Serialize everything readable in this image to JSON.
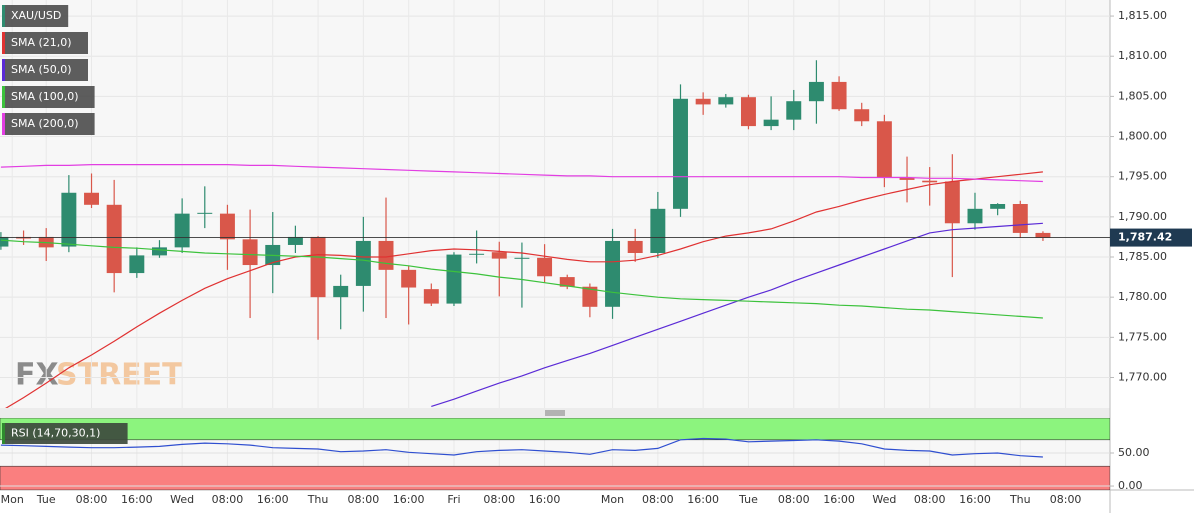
{
  "watermark": [
    "FX",
    "STREET"
  ],
  "chart_data": [
    {
      "type": "candlestick",
      "name": "XAU/USD",
      "up_color": "#2e8b6f",
      "down_color": "#d9574a",
      "legend_color": "#2e8b6f",
      "open": [
        1786.3,
        1787.5,
        1787.5,
        1786.3,
        1793.0,
        1791.5,
        1783.0,
        1785.2,
        1786.2,
        1790.4,
        1790.4,
        1787.2,
        1784.0,
        1786.5,
        1787.5,
        1780.0,
        1781.4,
        1787.0,
        1783.4,
        1781.0,
        1779.2,
        1785.3,
        1785.6,
        1784.8,
        1784.9,
        1782.5,
        1781.3,
        1778.8,
        1787.0,
        1785.5,
        1791.0,
        1804.7,
        1804.0,
        1804.9,
        1801.3,
        1802.1,
        1804.4,
        1806.8,
        1803.4,
        1801.9,
        1794.9,
        1794.5,
        1794.4,
        1789.2,
        1791.0,
        1791.6,
        1788.0
      ],
      "high": [
        1788.1,
        1788.3,
        1788.6,
        1795.2,
        1795.4,
        1794.6,
        1786.2,
        1787.1,
        1792.3,
        1793.8,
        1791.5,
        1790.9,
        1790.6,
        1788.9,
        1787.6,
        1782.8,
        1790.0,
        1792.4,
        1783.9,
        1781.7,
        1785.6,
        1788.3,
        1786.9,
        1786.8,
        1786.6,
        1782.8,
        1781.7,
        1788.5,
        1788.5,
        1793.1,
        1806.5,
        1805.5,
        1805.3,
        1805.2,
        1805.0,
        1805.8,
        1809.5,
        1807.5,
        1804.2,
        1802.7,
        1797.5,
        1796.2,
        1797.8,
        1793.0,
        1791.7,
        1792.0,
        1788.2
      ],
      "low": [
        1785.9,
        1786.5,
        1784.5,
        1785.6,
        1791.1,
        1780.6,
        1782.4,
        1784.9,
        1785.5,
        1788.6,
        1783.4,
        1777.4,
        1780.5,
        1785.5,
        1774.7,
        1776.0,
        1778.2,
        1777.4,
        1776.6,
        1778.9,
        1778.9,
        1784.2,
        1780.1,
        1778.7,
        1781.8,
        1781.0,
        1777.5,
        1777.3,
        1784.4,
        1784.9,
        1790.0,
        1802.7,
        1803.6,
        1800.9,
        1800.8,
        1800.8,
        1801.6,
        1803.2,
        1801.3,
        1793.7,
        1791.8,
        1791.4,
        1782.5,
        1788.4,
        1790.2,
        1787.4,
        1787.0
      ],
      "close": [
        1787.5,
        1787.3,
        1786.2,
        1793.0,
        1791.5,
        1783.0,
        1785.2,
        1786.2,
        1790.4,
        1790.5,
        1787.2,
        1784.0,
        1786.5,
        1787.5,
        1780.0,
        1781.4,
        1787.0,
        1783.4,
        1781.2,
        1779.2,
        1785.3,
        1785.4,
        1784.8,
        1784.9,
        1782.6,
        1781.3,
        1778.8,
        1787.0,
        1785.5,
        1791.0,
        1804.7,
        1804.0,
        1804.9,
        1801.3,
        1802.1,
        1804.4,
        1806.8,
        1803.4,
        1801.9,
        1794.9,
        1794.6,
        1794.3,
        1789.2,
        1791.0,
        1791.6,
        1788.0,
        1787.42
      ],
      "series": [
        {
          "name": "SMA (21,0)",
          "color": "#e03232",
          "values": [
            1765.8,
            1767.5,
            1769.3,
            1771.2,
            1772.8,
            1774.5,
            1776.3,
            1778.0,
            1779.6,
            1781.1,
            1782.3,
            1783.3,
            1784.3,
            1785.0,
            1785.3,
            1785.2,
            1785.0,
            1785.0,
            1785.4,
            1785.8,
            1786.0,
            1785.9,
            1785.7,
            1785.5,
            1785.1,
            1784.7,
            1784.4,
            1784.4,
            1784.6,
            1785.2,
            1786.0,
            1786.9,
            1787.6,
            1788.0,
            1788.5,
            1789.5,
            1790.6,
            1791.3,
            1792.1,
            1792.8,
            1793.4,
            1794.0,
            1794.4,
            1794.7,
            1795.0,
            1795.3,
            1795.6
          ]
        },
        {
          "name": "SMA (50,0)",
          "color": "#5b2bd6",
          "values": [
            null,
            null,
            null,
            null,
            null,
            null,
            null,
            null,
            null,
            null,
            null,
            null,
            null,
            null,
            null,
            null,
            null,
            null,
            null,
            1766.4,
            1767.3,
            1768.3,
            1769.3,
            1770.2,
            1771.2,
            1772.1,
            1773.0,
            1774.0,
            1775.0,
            1776.0,
            1777.0,
            1778.0,
            1779.0,
            1780.0,
            1780.9,
            1782.0,
            1783.0,
            1784.0,
            1785.0,
            1786.0,
            1787.0,
            1788.0,
            1788.4,
            1788.6,
            1788.8,
            1789.0,
            1789.2
          ]
        },
        {
          "name": "SMA (100,0)",
          "color": "#3cc23c",
          "values": [
            1787.1,
            1786.9,
            1786.8,
            1786.6,
            1786.4,
            1786.2,
            1786.1,
            1785.9,
            1785.7,
            1785.5,
            1785.4,
            1785.3,
            1785.2,
            1785.1,
            1785.0,
            1784.8,
            1784.6,
            1784.2,
            1783.9,
            1783.5,
            1783.2,
            1782.9,
            1782.5,
            1782.2,
            1781.8,
            1781.4,
            1781.0,
            1780.6,
            1780.3,
            1780.0,
            1779.8,
            1779.7,
            1779.6,
            1779.5,
            1779.4,
            1779.3,
            1779.2,
            1779.0,
            1778.9,
            1778.7,
            1778.5,
            1778.4,
            1778.2,
            1778.0,
            1777.8,
            1777.6,
            1777.4
          ]
        },
        {
          "name": "SMA (200,0)",
          "color": "#e23ee2",
          "values": [
            1796.2,
            1796.3,
            1796.4,
            1796.4,
            1796.5,
            1796.5,
            1796.5,
            1796.5,
            1796.5,
            1796.5,
            1796.5,
            1796.4,
            1796.4,
            1796.3,
            1796.2,
            1796.1,
            1796.0,
            1795.9,
            1795.8,
            1795.7,
            1795.6,
            1795.5,
            1795.4,
            1795.3,
            1795.2,
            1795.1,
            1795.1,
            1795.0,
            1795.0,
            1795.0,
            1795.0,
            1795.0,
            1795.0,
            1795.0,
            1795.0,
            1795.0,
            1795.0,
            1795.0,
            1794.9,
            1794.9,
            1794.9,
            1794.8,
            1794.8,
            1794.7,
            1794.6,
            1794.5,
            1794.4
          ]
        }
      ],
      "last_price": {
        "value": 1787.42,
        "label": "1,787.42"
      },
      "xlim": [
        -0.04,
        48.96
      ],
      "xticks": [
        {
          "value": 0.5,
          "label": "Mon"
        },
        {
          "value": 2,
          "label": "Tue"
        },
        {
          "value": 4,
          "label": "08:00"
        },
        {
          "value": 6,
          "label": "16:00"
        },
        {
          "value": 8,
          "label": "Wed"
        },
        {
          "value": 10,
          "label": "08:00"
        },
        {
          "value": 12,
          "label": "16:00"
        },
        {
          "value": 14,
          "label": "Thu"
        },
        {
          "value": 16,
          "label": "08:00"
        },
        {
          "value": 18,
          "label": "16:00"
        },
        {
          "value": 20,
          "label": "Fri"
        },
        {
          "value": 22,
          "label": "08:00"
        },
        {
          "value": 24,
          "label": "16:00"
        },
        {
          "value": 27,
          "label": "Mon"
        },
        {
          "value": 29,
          "label": "08:00"
        },
        {
          "value": 31,
          "label": "16:00"
        },
        {
          "value": 33,
          "label": "Tue"
        },
        {
          "value": 35,
          "label": "08:00"
        },
        {
          "value": 37,
          "label": "16:00"
        },
        {
          "value": 39,
          "label": "Wed"
        },
        {
          "value": 41,
          "label": "08:00"
        },
        {
          "value": 43,
          "label": "16:00"
        },
        {
          "value": 45,
          "label": "Thu"
        },
        {
          "value": 47,
          "label": "08:00"
        }
      ],
      "ylim": [
        1766.2,
        1817
      ],
      "yticks": [
        {
          "value": 1770,
          "label": "1,770.00"
        },
        {
          "value": 1775,
          "label": "1,775.00"
        },
        {
          "value": 1780,
          "label": "1,780.00"
        },
        {
          "value": 1785,
          "label": "1,785.00"
        },
        {
          "value": 1790,
          "label": "1,790.00"
        },
        {
          "value": 1795,
          "label": "1,795.00"
        },
        {
          "value": 1800,
          "label": "1,800.00"
        },
        {
          "value": 1805,
          "label": "1,805.00"
        },
        {
          "value": 1810,
          "label": "1,810.00"
        },
        {
          "value": 1815,
          "label": "1,815.00"
        }
      ],
      "grid": true
    },
    {
      "type": "line",
      "series": [
        {
          "name": "RSI (14,70,30,1)",
          "color": "#2f4fd0",
          "values": [
            62,
            61,
            60,
            59,
            58,
            58,
            59,
            60,
            63,
            65,
            64,
            62,
            58,
            57,
            56,
            52,
            53,
            55,
            51,
            49,
            47,
            52,
            54,
            55,
            53,
            51,
            48,
            55,
            54,
            57,
            70,
            72,
            71,
            67,
            68,
            69,
            70,
            68,
            64,
            56,
            54,
            53,
            47,
            49,
            50,
            46,
            44
          ]
        }
      ],
      "overbought": 70,
      "oversold": 30,
      "overbought_color": "#8cf47e",
      "oversold_color": "#fa7f7f",
      "ylim": [
        -6,
        103
      ],
      "yticks": [
        {
          "value": 0,
          "label": "0.00"
        },
        {
          "value": 50,
          "label": "50.00"
        }
      ]
    }
  ]
}
